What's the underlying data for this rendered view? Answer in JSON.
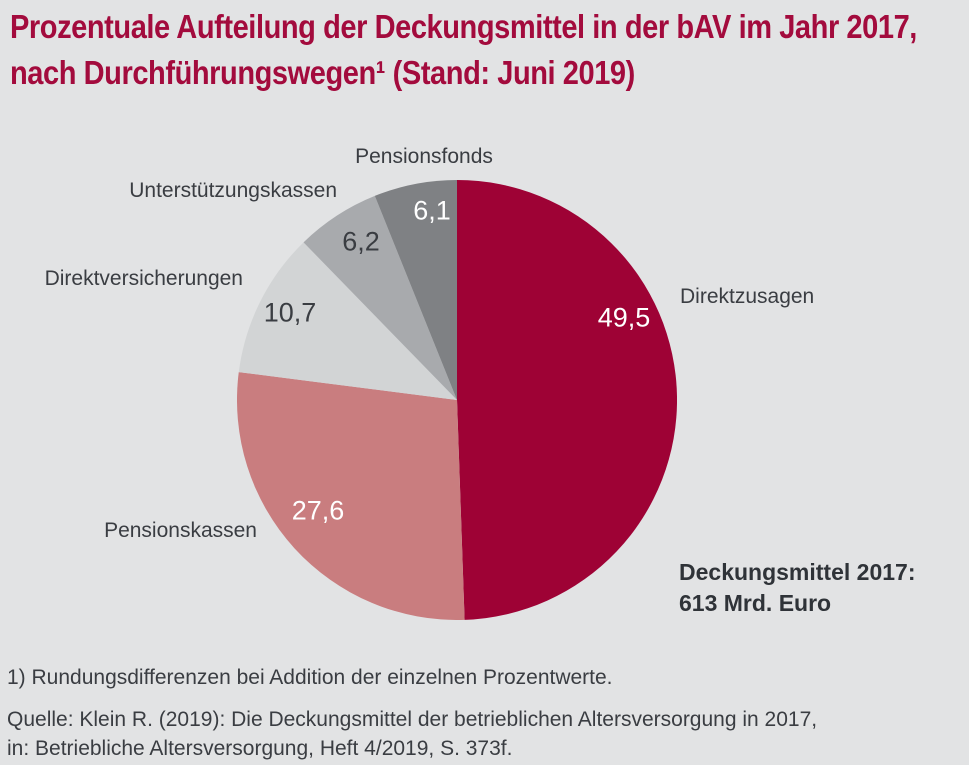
{
  "title": {
    "line1": "Prozentuale Aufteilung der Deckungsmittel in der bAV im Jahr 2017,",
    "line2": "nach Durchführungswegen¹ (Stand: Juni 2019)"
  },
  "colors": {
    "background": "#e2e3e4",
    "title_text": "#a30b3d",
    "label_text": "#3a3d42",
    "value_text_on_dark": "#ffffff"
  },
  "chart_data": {
    "type": "pie",
    "unit": "percent",
    "start_angle_deg": 0,
    "direction": "clockwise",
    "title": "Prozentuale Aufteilung der Deckungsmittel in der bAV im Jahr 2017, nach Durchführungswegen (Stand: Juni 2019)",
    "slices": [
      {
        "name": "Direktzusagen",
        "value": 49.5,
        "value_label": "49,5",
        "color": "#9e0235"
      },
      {
        "name": "Pensionskassen",
        "value": 27.6,
        "value_label": "27,6",
        "color": "#c97d7f"
      },
      {
        "name": "Direktversicherungen",
        "value": 10.7,
        "value_label": "10,7",
        "color": "#d2d4d5"
      },
      {
        "name": "Unterstützungskassen",
        "value": 6.2,
        "value_label": "6,2",
        "color": "#a8aaad"
      },
      {
        "name": "Pensionsfonds",
        "value": 6.1,
        "value_label": "6,1",
        "color": "#7f8184"
      }
    ],
    "annotation": {
      "line1": "Deckungsmittel 2017:",
      "line2": "613 Mrd. Euro"
    }
  },
  "footer": {
    "footnote": "1) Rundungsdifferenzen bei Addition der einzelnen Prozentwerte.",
    "source_line1": "Quelle: Klein R. (2019): Die Deckungsmittel der betrieblichen Altersversorgung in 2017,",
    "source_line2": "in: Betriebliche Altersversorgung, Heft 4/2019, S. 373f."
  }
}
